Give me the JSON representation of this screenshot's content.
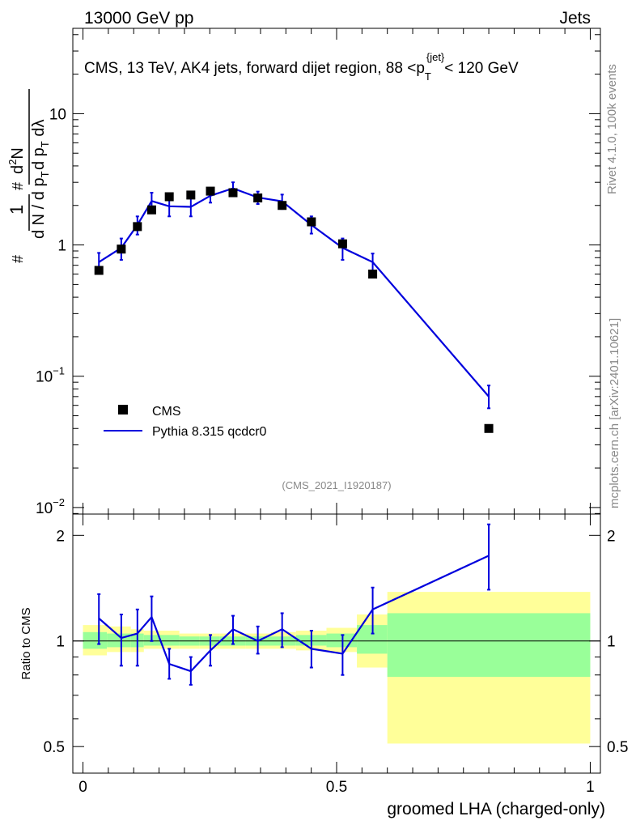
{
  "header": {
    "left": "13000 GeV pp",
    "right": "Jets"
  },
  "title": {
    "prefix": "CMS, 13 TeV, AK4 jets, forward dijet region, 88 <",
    "p": "p",
    "sub": "T",
    "sup": "{jet}",
    "suffix": "< 120 GeV"
  },
  "ylabel_top": "1/dN/dp_T d^2N/dp_T dλ",
  "ylabel_bottom": "Ratio to CMS",
  "xlabel": "groomed LHA (charged-only)",
  "side_right_top": "Rivet 4.1.0,  100k events",
  "side_right_bottom": "mcplots.cern.ch [arXiv:2401.10621]",
  "analysis_tag": "(CMS_2021_I1920187)",
  "legend": {
    "cms": "CMS",
    "mc": "Pythia 8.315 qcdcr0"
  },
  "colors": {
    "mc": "#0000dd",
    "band_inner": "#99ff99",
    "band_outer": "#ffff99",
    "data": "#000000"
  },
  "top_ticks": {
    "major": [
      "10^-2",
      "10^-1",
      "1",
      "10"
    ]
  },
  "bottom_ticks": {
    "major": [
      "0.5",
      "1",
      "2"
    ]
  },
  "x_ticks": [
    "0",
    "0.5",
    "1"
  ],
  "chart_data": {
    "type": "scatter",
    "x_range": [
      -0.02,
      1.02
    ],
    "top_y_range_log10": [
      -2.05,
      1.65
    ],
    "bottom_y_range": [
      0.42,
      2.3
    ],
    "data_points": [
      {
        "x": 0.0314,
        "y": 0.64
      },
      {
        "x": 0.0755,
        "y": 0.93
      },
      {
        "x": 0.1073,
        "y": 1.38
      },
      {
        "x": 0.1354,
        "y": 1.85
      },
      {
        "x": 0.1701,
        "y": 2.33
      },
      {
        "x": 0.2126,
        "y": 2.4
      },
      {
        "x": 0.2512,
        "y": 2.57
      },
      {
        "x": 0.2958,
        "y": 2.5
      },
      {
        "x": 0.3447,
        "y": 2.28
      },
      {
        "x": 0.3926,
        "y": 2.0
      },
      {
        "x": 0.4503,
        "y": 1.5
      },
      {
        "x": 0.5118,
        "y": 1.02
      },
      {
        "x": 0.5711,
        "y": 0.6
      },
      {
        "x": 0.8,
        "y": 0.04
      }
    ],
    "mc_points": [
      {
        "x": 0.0314,
        "y": 0.74,
        "ylo": 0.62,
        "yhi": 0.87
      },
      {
        "x": 0.0755,
        "y": 0.95,
        "ylo": 0.77,
        "yhi": 1.12
      },
      {
        "x": 0.1073,
        "y": 1.42,
        "ylo": 1.2,
        "yhi": 1.65
      },
      {
        "x": 0.1354,
        "y": 2.16,
        "ylo": 1.82,
        "yhi": 2.5
      },
      {
        "x": 0.1701,
        "y": 1.97,
        "ylo": 1.65,
        "yhi": 2.3
      },
      {
        "x": 0.2126,
        "y": 1.95,
        "ylo": 1.65,
        "yhi": 2.27
      },
      {
        "x": 0.2512,
        "y": 2.37,
        "ylo": 2.1,
        "yhi": 2.7
      },
      {
        "x": 0.2958,
        "y": 2.7,
        "ylo": 2.42,
        "yhi": 3.0
      },
      {
        "x": 0.3447,
        "y": 2.3,
        "ylo": 2.05,
        "yhi": 2.55
      },
      {
        "x": 0.3926,
        "y": 2.15,
        "ylo": 1.88,
        "yhi": 2.42
      },
      {
        "x": 0.4503,
        "y": 1.42,
        "ylo": 1.22,
        "yhi": 1.65
      },
      {
        "x": 0.5118,
        "y": 0.95,
        "ylo": 0.77,
        "yhi": 1.12
      },
      {
        "x": 0.5711,
        "y": 0.74,
        "ylo": 0.6,
        "yhi": 0.86
      },
      {
        "x": 0.8,
        "y": 0.07,
        "ylo": 0.057,
        "yhi": 0.085
      }
    ],
    "ratio_points": [
      {
        "x": 0.0314,
        "y": 1.16,
        "ylo": 0.98,
        "yhi": 1.36
      },
      {
        "x": 0.0755,
        "y": 1.02,
        "ylo": 0.85,
        "yhi": 1.19
      },
      {
        "x": 0.1073,
        "y": 1.05,
        "ylo": 0.85,
        "yhi": 1.23
      },
      {
        "x": 0.1354,
        "y": 1.17,
        "ylo": 1.0,
        "yhi": 1.34
      },
      {
        "x": 0.1701,
        "y": 0.86,
        "ylo": 0.78,
        "yhi": 0.95
      },
      {
        "x": 0.2126,
        "y": 0.82,
        "ylo": 0.75,
        "yhi": 0.9
      },
      {
        "x": 0.2512,
        "y": 0.94,
        "ylo": 0.85,
        "yhi": 1.04
      },
      {
        "x": 0.2958,
        "y": 1.08,
        "ylo": 0.98,
        "yhi": 1.18
      },
      {
        "x": 0.3447,
        "y": 1.0,
        "ylo": 0.92,
        "yhi": 1.1
      },
      {
        "x": 0.3926,
        "y": 1.08,
        "ylo": 0.96,
        "yhi": 1.2
      },
      {
        "x": 0.4503,
        "y": 0.95,
        "ylo": 0.84,
        "yhi": 1.07
      },
      {
        "x": 0.5118,
        "y": 0.92,
        "ylo": 0.8,
        "yhi": 1.04
      },
      {
        "x": 0.5711,
        "y": 1.23,
        "ylo": 1.05,
        "yhi": 1.42
      },
      {
        "x": 0.8,
        "y": 1.75,
        "ylo": 1.4,
        "yhi": 2.15
      }
    ],
    "uncertainty_bands": [
      {
        "x0": 0.0,
        "x1": 0.0472,
        "outer_lo": 0.91,
        "outer_hi": 1.11,
        "inner_lo": 0.95,
        "inner_hi": 1.06
      },
      {
        "x0": 0.0472,
        "x1": 0.0944,
        "outer_lo": 0.93,
        "outer_hi": 1.1,
        "inner_lo": 0.96,
        "inner_hi": 1.05
      },
      {
        "x0": 0.0944,
        "x1": 0.12,
        "outer_lo": 0.93,
        "outer_hi": 1.08,
        "inner_lo": 0.96,
        "inner_hi": 1.05
      },
      {
        "x0": 0.12,
        "x1": 0.19,
        "outer_lo": 0.95,
        "outer_hi": 1.07,
        "inner_lo": 0.97,
        "inner_hi": 1.04
      },
      {
        "x0": 0.19,
        "x1": 0.23,
        "outer_lo": 0.95,
        "outer_hi": 1.05,
        "inner_lo": 0.97,
        "inner_hi": 1.03
      },
      {
        "x0": 0.23,
        "x1": 0.27,
        "outer_lo": 0.95,
        "outer_hi": 1.05,
        "inner_lo": 0.97,
        "inner_hi": 1.03
      },
      {
        "x0": 0.27,
        "x1": 0.32,
        "outer_lo": 0.95,
        "outer_hi": 1.05,
        "inner_lo": 0.97,
        "inner_hi": 1.03
      },
      {
        "x0": 0.32,
        "x1": 0.37,
        "outer_lo": 0.95,
        "outer_hi": 1.05,
        "inner_lo": 0.97,
        "inner_hi": 1.03
      },
      {
        "x0": 0.37,
        "x1": 0.42,
        "outer_lo": 0.95,
        "outer_hi": 1.06,
        "inner_lo": 0.97,
        "inner_hi": 1.03
      },
      {
        "x0": 0.42,
        "x1": 0.48,
        "outer_lo": 0.94,
        "outer_hi": 1.07,
        "inner_lo": 0.97,
        "inner_hi": 1.04
      },
      {
        "x0": 0.48,
        "x1": 0.54,
        "outer_lo": 0.93,
        "outer_hi": 1.09,
        "inner_lo": 0.96,
        "inner_hi": 1.05
      },
      {
        "x0": 0.54,
        "x1": 0.6,
        "outer_lo": 0.84,
        "outer_hi": 1.19,
        "inner_lo": 0.92,
        "inner_hi": 1.11
      },
      {
        "x0": 0.6,
        "x1": 1.0,
        "outer_lo": 0.51,
        "outer_hi": 1.38,
        "inner_lo": 0.79,
        "inner_hi": 1.2
      }
    ]
  }
}
